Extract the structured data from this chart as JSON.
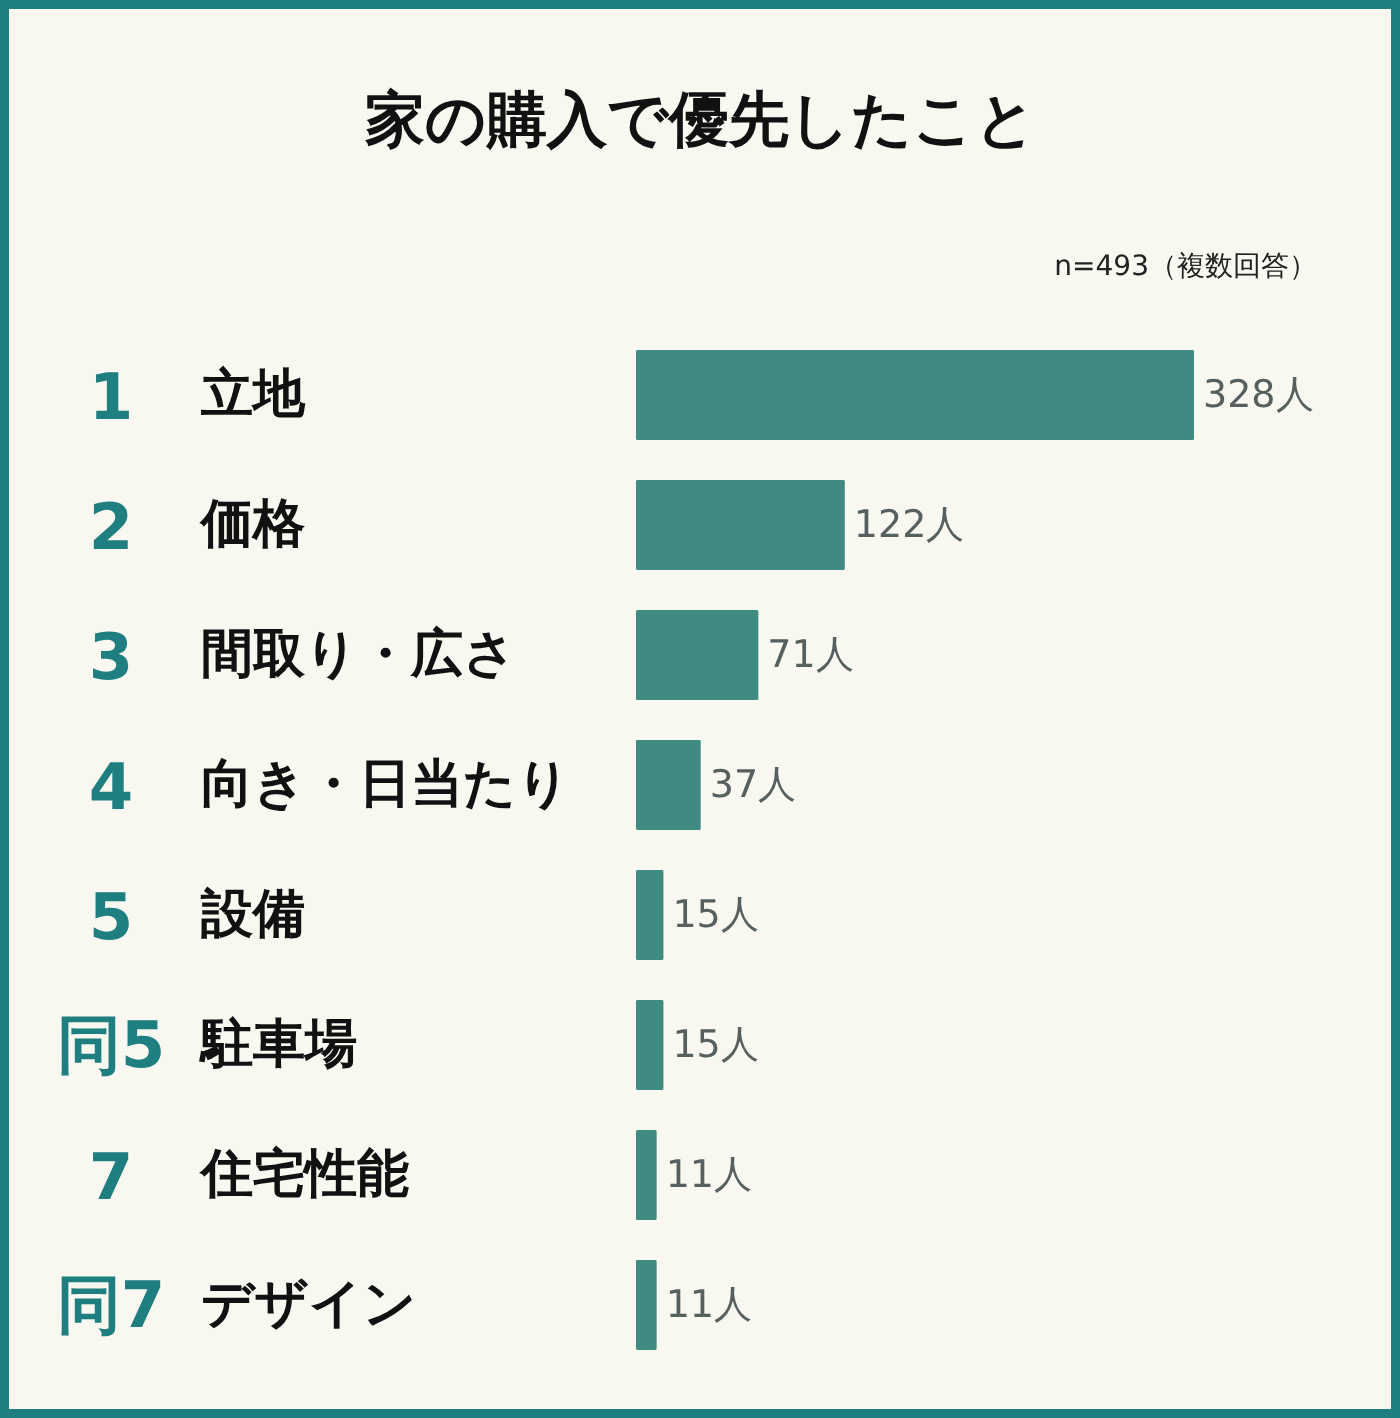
{
  "chart_data": {
    "type": "bar",
    "orientation": "horizontal",
    "title": "家の購入で優先したこと",
    "subtitle": "n=493（複数回答）",
    "categories": [
      "立地",
      "価格",
      "間取り・広さ",
      "向き・日当たり",
      "設備",
      "駐車場",
      "住宅性能",
      "デザイン"
    ],
    "values": [
      328,
      122,
      71,
      37,
      15,
      15,
      11,
      11
    ],
    "value_labels": [
      "328人",
      "122人",
      "71人",
      "37人",
      "15人",
      "15人",
      "11人",
      "11人"
    ],
    "color": "#3f8b82",
    "annotations": [
      "1",
      "2",
      "3",
      "4",
      "5",
      "同5",
      "7",
      "同7"
    ]
  }
}
